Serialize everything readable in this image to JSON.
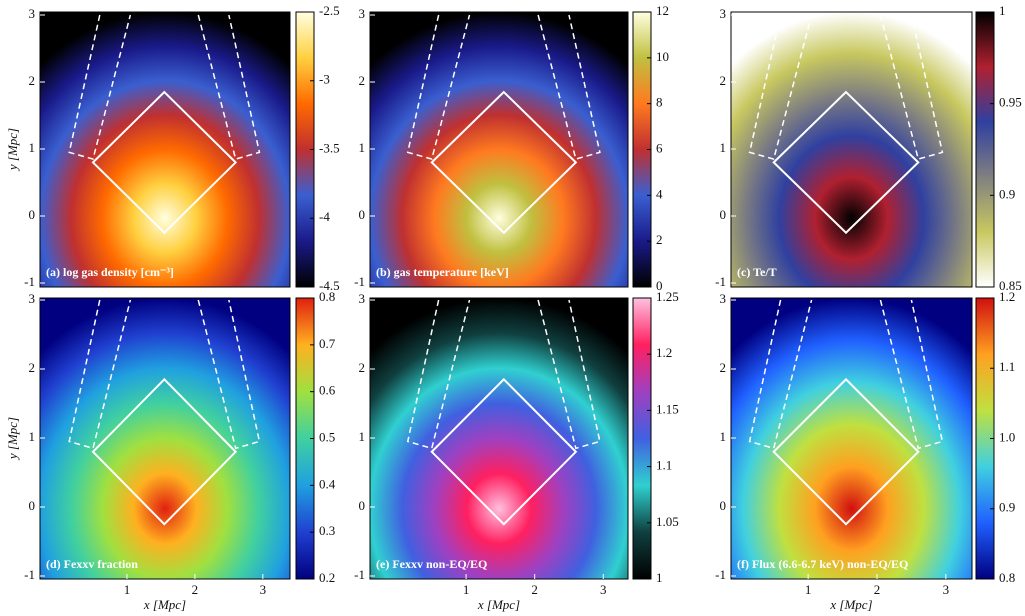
{
  "chart_data": [
    {
      "type": "heatmap",
      "label": "(a) log gas density [cm⁻³]",
      "ylabel": "y [Mpc]",
      "xlim": [
        -0.28,
        3.4
      ],
      "ylim": [
        -1,
        3
      ],
      "yticks": [
        -1,
        0,
        1,
        2,
        3
      ],
      "clim": [
        -4.5,
        -2.5
      ],
      "cticks": [
        -2.5,
        -3,
        -3.5,
        -4,
        -4.5
      ],
      "colormap": [
        "#000000",
        "#1a1a8a",
        "#3a5fd0",
        "#c03030",
        "#ff6a00",
        "#ffd040",
        "#ffffe0"
      ]
    },
    {
      "type": "heatmap",
      "label": "(b) gas temperature [keV]",
      "xlim": [
        -0.4,
        3.36
      ],
      "ylim": [
        -1,
        3
      ],
      "yticks": [
        -1,
        0,
        1,
        2,
        3
      ],
      "clim": [
        0,
        12
      ],
      "cticks": [
        0,
        2,
        4,
        6,
        8,
        10,
        12
      ],
      "colormap": [
        "#000000",
        "#1a1a8a",
        "#3a5fd0",
        "#c03030",
        "#ff7a20",
        "#c0c040",
        "#ffffe0"
      ]
    },
    {
      "type": "heatmap",
      "label": "(c) Te/T",
      "xlim": [
        -0.12,
        3.38
      ],
      "ylim": [
        -1,
        3
      ],
      "yticks": [
        -1,
        0,
        1,
        2,
        3
      ],
      "clim": [
        0.85,
        1
      ],
      "cticks": [
        0.85,
        0.9,
        0.95,
        1
      ],
      "colormap": [
        "#ffffff",
        "#c8c860",
        "#808080",
        "#3040a0",
        "#b02030",
        "#000000"
      ]
    },
    {
      "type": "heatmap",
      "label": "(d) Fexxv fraction",
      "xlabel": "x [Mpc]",
      "ylabel": "y [Mpc]",
      "xlim": [
        -0.28,
        3.4
      ],
      "ylim": [
        -1,
        3
      ],
      "xticks": [
        1,
        2,
        3
      ],
      "yticks": [
        -1,
        0,
        1,
        2,
        3
      ],
      "clim": [
        0.2,
        0.8
      ],
      "cticks": [
        0.2,
        0.3,
        0.4,
        0.5,
        0.6,
        0.7,
        0.8
      ],
      "colormap": [
        "#000080",
        "#2040d0",
        "#20a0e0",
        "#40d0a0",
        "#a0e040",
        "#ffb020",
        "#e02010"
      ]
    },
    {
      "type": "heatmap",
      "label": "(e) Fexxv non-EQ/EQ",
      "xlabel": "x [Mpc]",
      "xlim": [
        -0.4,
        3.36
      ],
      "ylim": [
        -1,
        3
      ],
      "xticks": [
        1,
        2,
        3
      ],
      "yticks": [
        -1,
        0,
        1,
        2,
        3
      ],
      "clim": [
        1,
        1.25
      ],
      "cticks": [
        1,
        1.05,
        1.1,
        1.15,
        1.2,
        1.25
      ],
      "colormap": [
        "#000000",
        "#104040",
        "#30d0d0",
        "#4060e0",
        "#a040c0",
        "#ff2060",
        "#ffc0e0"
      ]
    },
    {
      "type": "heatmap",
      "label": "(f) Flux (6.6-6.7 keV) non-EQ/EQ",
      "xlabel": "x [Mpc]",
      "xlim": [
        -0.12,
        3.38
      ],
      "ylim": [
        -1,
        3
      ],
      "xticks": [
        1,
        2,
        3
      ],
      "yticks": [
        -1,
        0,
        1,
        2,
        3
      ],
      "clim": [
        0.8,
        1.2
      ],
      "cticks": [
        0.8,
        0.9,
        {
          "value": 1,
          "label": "1.0"
        },
        1.1,
        1.2
      ],
      "colormap": [
        "#000080",
        "#2060ff",
        "#40d0e0",
        "#c0e040",
        "#ffa020",
        "#d01010"
      ]
    }
  ]
}
